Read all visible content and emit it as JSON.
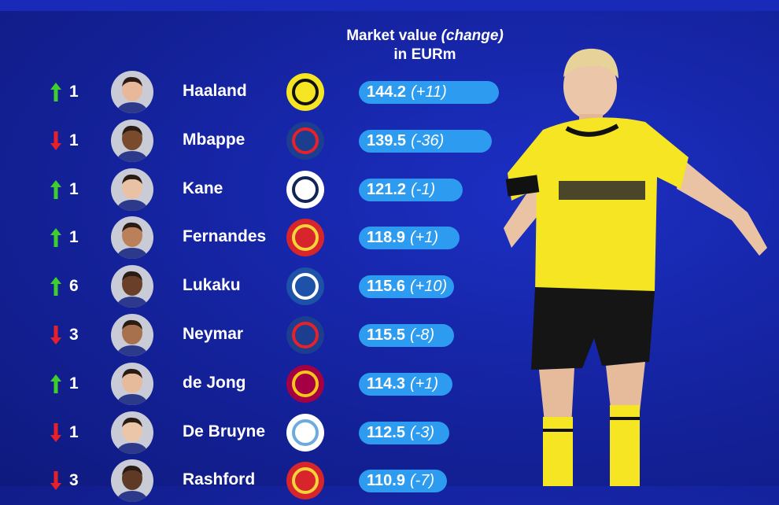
{
  "header": {
    "line1_prefix": "Market value ",
    "line1_italic": "(change)",
    "line2": "in EURm"
  },
  "colors": {
    "up": "#3ecf2e",
    "down": "#e8202a",
    "bar": "#2c9bf0",
    "background": "#14229c"
  },
  "chart_data": {
    "type": "bar",
    "orientation": "horizontal",
    "xlim": [
      0,
      150
    ],
    "rows": [
      {
        "direction": "up",
        "rank_change": "1",
        "player": "Haaland",
        "club_icon": "bvb-crest",
        "value": 144.2,
        "value_label": "144.2",
        "change_label": "(+11)"
      },
      {
        "direction": "down",
        "rank_change": "1",
        "player": "Mbappe",
        "club_icon": "psg-crest",
        "value": 139.5,
        "value_label": "139.5",
        "change_label": "(-36)"
      },
      {
        "direction": "up",
        "rank_change": "1",
        "player": "Kane",
        "club_icon": "tottenham-crest",
        "value": 121.2,
        "value_label": "121.2",
        "change_label": "(-1)"
      },
      {
        "direction": "up",
        "rank_change": "1",
        "player": "Fernandes",
        "club_icon": "man-united-crest",
        "value": 118.9,
        "value_label": "118.9",
        "change_label": "(+1)"
      },
      {
        "direction": "up",
        "rank_change": "6",
        "player": "Lukaku",
        "club_icon": "chelsea-crest",
        "value": 115.6,
        "value_label": "115.6",
        "change_label": "(+10)"
      },
      {
        "direction": "down",
        "rank_change": "3",
        "player": "Neymar",
        "club_icon": "psg-crest",
        "value": 115.5,
        "value_label": "115.5",
        "change_label": "(-8)"
      },
      {
        "direction": "up",
        "rank_change": "1",
        "player": "de Jong",
        "club_icon": "barcelona-crest",
        "value": 114.3,
        "value_label": "114.3",
        "change_label": "(+1)"
      },
      {
        "direction": "down",
        "rank_change": "1",
        "player": "De Bruyne",
        "club_icon": "man-city-crest",
        "value": 112.5,
        "value_label": "112.5",
        "change_label": "(-3)"
      },
      {
        "direction": "down",
        "rank_change": "3",
        "player": "Rashford",
        "club_icon": "man-united-crest",
        "value": 110.9,
        "value_label": "110.9",
        "change_label": "(-7)"
      }
    ]
  }
}
